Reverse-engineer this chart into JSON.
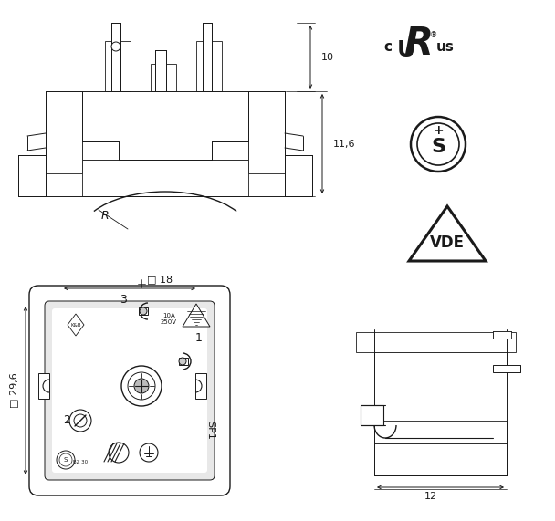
{
  "bg_color": "#ffffff",
  "line_color": "#1a1a1a",
  "fig_width": 6.08,
  "fig_height": 5.71,
  "dpi": 100,
  "dim_10_label": "10",
  "dim_116_label": "11,6",
  "dim_18_label": "□ 18",
  "dim_296_label": "□ 29,6",
  "dim_12_label": "12",
  "dim_R_label": "R",
  "vde_text": "VDE",
  "sp1_text": "SP1",
  "ul_c": "c",
  "ul_us": "us",
  "rating": "10A\n250V",
  "kb": "K&B",
  "bz30": "BZ 30"
}
